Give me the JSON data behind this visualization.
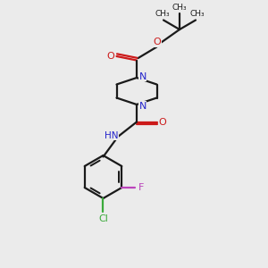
{
  "bg_color": "#ebebeb",
  "bond_color": "#1a1a1a",
  "N_color": "#2424cc",
  "O_color": "#cc1a1a",
  "F_color": "#bb44bb",
  "Cl_color": "#3aaa3a",
  "line_width": 1.6,
  "figsize": [
    3.0,
    3.0
  ],
  "dpi": 100,
  "xlim": [
    0,
    10
  ],
  "ylim": [
    0,
    10
  ]
}
